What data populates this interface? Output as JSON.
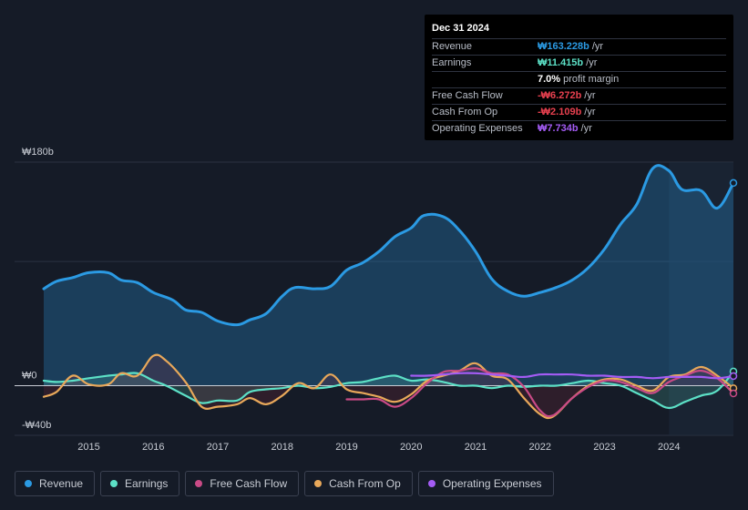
{
  "tooltip": {
    "date": "Dec 31 2024",
    "rows": [
      {
        "label": "Revenue",
        "value": "₩163.228b",
        "unit": "/yr",
        "color": "#2b9ae3"
      },
      {
        "label": "Earnings",
        "value": "₩11.415b",
        "unit": "/yr",
        "color": "#5ce0c6"
      },
      {
        "label": "",
        "value": "7.0%",
        "unit": "profit margin",
        "color": "#ffffff"
      },
      {
        "label": "Free Cash Flow",
        "value": "-₩6.272b",
        "unit": "/yr",
        "color": "#e8404f"
      },
      {
        "label": "Cash From Op",
        "value": "-₩2.109b",
        "unit": "/yr",
        "color": "#e8404f"
      },
      {
        "label": "Operating Expenses",
        "value": "₩7.734b",
        "unit": "/yr",
        "color": "#a45cf5"
      }
    ]
  },
  "legend": [
    {
      "label": "Revenue",
      "color": "#2b9ae3"
    },
    {
      "label": "Earnings",
      "color": "#5ce0c6"
    },
    {
      "label": "Free Cash Flow",
      "color": "#c94a86"
    },
    {
      "label": "Cash From Op",
      "color": "#e8a85a"
    },
    {
      "label": "Operating Expenses",
      "color": "#a45cf5"
    }
  ],
  "chart_data": {
    "type": "line",
    "title": "",
    "xlabel": "",
    "ylabel": "",
    "ylim": [
      -40,
      180
    ],
    "y_tick_labels": [
      {
        "value": 180,
        "label": "₩180b"
      },
      {
        "value": 0,
        "label": "₩0"
      },
      {
        "value": -40,
        "label": "-₩40b"
      }
    ],
    "x_ticks": [
      2015,
      2016,
      2017,
      2018,
      2019,
      2020,
      2021,
      2022,
      2023,
      2024
    ],
    "x_range": [
      2014.3,
      2025.0
    ],
    "forecast_start": 2024.0,
    "series": [
      {
        "name": "Revenue",
        "color": "#2b9ae3",
        "fill": true,
        "points": [
          [
            2014.3,
            78
          ],
          [
            2014.5,
            84
          ],
          [
            2014.75,
            87
          ],
          [
            2015.0,
            91
          ],
          [
            2015.3,
            91
          ],
          [
            2015.5,
            85
          ],
          [
            2015.75,
            83
          ],
          [
            2016.0,
            75
          ],
          [
            2016.3,
            69
          ],
          [
            2016.5,
            61
          ],
          [
            2016.75,
            59
          ],
          [
            2017.0,
            52
          ],
          [
            2017.3,
            49
          ],
          [
            2017.5,
            53
          ],
          [
            2017.75,
            58
          ],
          [
            2018.0,
            72
          ],
          [
            2018.2,
            79
          ],
          [
            2018.5,
            78
          ],
          [
            2018.75,
            80
          ],
          [
            2019.0,
            93
          ],
          [
            2019.25,
            99
          ],
          [
            2019.5,
            108
          ],
          [
            2019.75,
            120
          ],
          [
            2020.0,
            127
          ],
          [
            2020.2,
            137
          ],
          [
            2020.5,
            136
          ],
          [
            2020.75,
            125
          ],
          [
            2021.0,
            108
          ],
          [
            2021.25,
            86
          ],
          [
            2021.5,
            76
          ],
          [
            2021.75,
            72
          ],
          [
            2022.0,
            75
          ],
          [
            2022.25,
            79
          ],
          [
            2022.5,
            85
          ],
          [
            2022.75,
            95
          ],
          [
            2023.0,
            110
          ],
          [
            2023.25,
            130
          ],
          [
            2023.5,
            146
          ],
          [
            2023.75,
            175
          ],
          [
            2024.0,
            173
          ],
          [
            2024.2,
            158
          ],
          [
            2024.5,
            157
          ],
          [
            2024.75,
            143
          ],
          [
            2025.0,
            163.2
          ]
        ]
      },
      {
        "name": "Earnings",
        "color": "#5ce0c6",
        "fill": true,
        "points": [
          [
            2014.3,
            4
          ],
          [
            2014.5,
            3
          ],
          [
            2014.75,
            4
          ],
          [
            2015.0,
            6
          ],
          [
            2015.3,
            8
          ],
          [
            2015.5,
            9
          ],
          [
            2015.75,
            10
          ],
          [
            2016.0,
            4
          ],
          [
            2016.2,
            0
          ],
          [
            2016.5,
            -8
          ],
          [
            2016.75,
            -14
          ],
          [
            2017.0,
            -12
          ],
          [
            2017.3,
            -12
          ],
          [
            2017.5,
            -5
          ],
          [
            2017.75,
            -3
          ],
          [
            2018.0,
            -2
          ],
          [
            2018.25,
            0
          ],
          [
            2018.5,
            -2
          ],
          [
            2018.75,
            -1
          ],
          [
            2019.0,
            2
          ],
          [
            2019.25,
            3
          ],
          [
            2019.5,
            6
          ],
          [
            2019.75,
            8
          ],
          [
            2020.0,
            4
          ],
          [
            2020.25,
            5
          ],
          [
            2020.5,
            3
          ],
          [
            2020.75,
            0
          ],
          [
            2021.0,
            0
          ],
          [
            2021.25,
            -2
          ],
          [
            2021.5,
            0
          ],
          [
            2021.75,
            -1
          ],
          [
            2022.0,
            0
          ],
          [
            2022.25,
            0
          ],
          [
            2022.5,
            2
          ],
          [
            2022.75,
            4
          ],
          [
            2023.0,
            2
          ],
          [
            2023.25,
            0
          ],
          [
            2023.5,
            -6
          ],
          [
            2023.75,
            -12
          ],
          [
            2024.0,
            -18
          ],
          [
            2024.25,
            -13
          ],
          [
            2024.5,
            -8
          ],
          [
            2024.75,
            -4
          ],
          [
            2025.0,
            11.4
          ]
        ]
      },
      {
        "name": "Cash From Op",
        "color": "#e8a85a",
        "fill": true,
        "points": [
          [
            2014.3,
            -9
          ],
          [
            2014.5,
            -5
          ],
          [
            2014.75,
            8
          ],
          [
            2015.0,
            1
          ],
          [
            2015.3,
            1
          ],
          [
            2015.5,
            10
          ],
          [
            2015.75,
            8
          ],
          [
            2016.0,
            24
          ],
          [
            2016.2,
            20
          ],
          [
            2016.5,
            3
          ],
          [
            2016.75,
            -17
          ],
          [
            2017.0,
            -17
          ],
          [
            2017.3,
            -15
          ],
          [
            2017.5,
            -10
          ],
          [
            2017.75,
            -15
          ],
          [
            2018.0,
            -8
          ],
          [
            2018.25,
            2
          ],
          [
            2018.5,
            -2
          ],
          [
            2018.75,
            9
          ],
          [
            2019.0,
            -3
          ],
          [
            2019.25,
            -6
          ],
          [
            2019.5,
            -9
          ],
          [
            2019.75,
            -13
          ],
          [
            2020.0,
            -7
          ],
          [
            2020.25,
            4
          ],
          [
            2020.5,
            8
          ],
          [
            2020.75,
            12
          ],
          [
            2021.0,
            18
          ],
          [
            2021.25,
            8
          ],
          [
            2021.5,
            5
          ],
          [
            2021.75,
            -10
          ],
          [
            2022.0,
            -23
          ],
          [
            2022.2,
            -25
          ],
          [
            2022.5,
            -10
          ],
          [
            2022.75,
            0
          ],
          [
            2023.0,
            5
          ],
          [
            2023.25,
            5
          ],
          [
            2023.5,
            0
          ],
          [
            2023.75,
            -4
          ],
          [
            2024.0,
            7
          ],
          [
            2024.25,
            9
          ],
          [
            2024.5,
            15
          ],
          [
            2024.75,
            8
          ],
          [
            2025.0,
            -2.1
          ]
        ]
      },
      {
        "name": "Free Cash Flow",
        "color": "#c94a86",
        "fill": false,
        "points": [
          [
            2019.0,
            -11
          ],
          [
            2019.25,
            -11
          ],
          [
            2019.5,
            -11
          ],
          [
            2019.75,
            -17
          ],
          [
            2020.0,
            -10
          ],
          [
            2020.25,
            2
          ],
          [
            2020.5,
            11
          ],
          [
            2020.75,
            12
          ],
          [
            2021.0,
            14
          ],
          [
            2021.25,
            10
          ],
          [
            2021.5,
            9
          ],
          [
            2021.75,
            -1
          ],
          [
            2022.0,
            -20
          ],
          [
            2022.2,
            -24
          ],
          [
            2022.5,
            -10
          ],
          [
            2022.75,
            -1
          ],
          [
            2023.0,
            4
          ],
          [
            2023.25,
            3
          ],
          [
            2023.5,
            -2
          ],
          [
            2023.75,
            -6
          ],
          [
            2024.0,
            3
          ],
          [
            2024.25,
            8
          ],
          [
            2024.5,
            12
          ],
          [
            2024.75,
            6
          ],
          [
            2025.0,
            -6.3
          ]
        ]
      },
      {
        "name": "Operating Expenses",
        "color": "#a45cf5",
        "fill": false,
        "points": [
          [
            2020.0,
            8
          ],
          [
            2020.25,
            8
          ],
          [
            2020.5,
            9
          ],
          [
            2020.75,
            10
          ],
          [
            2021.0,
            10
          ],
          [
            2021.25,
            9
          ],
          [
            2021.5,
            8
          ],
          [
            2021.75,
            7
          ],
          [
            2022.0,
            9
          ],
          [
            2022.25,
            9
          ],
          [
            2022.5,
            9
          ],
          [
            2022.75,
            8
          ],
          [
            2023.0,
            8
          ],
          [
            2023.25,
            7
          ],
          [
            2023.5,
            7
          ],
          [
            2023.75,
            6
          ],
          [
            2024.0,
            7
          ],
          [
            2024.25,
            7
          ],
          [
            2024.5,
            7
          ],
          [
            2024.75,
            6
          ],
          [
            2025.0,
            7.7
          ]
        ]
      }
    ]
  }
}
